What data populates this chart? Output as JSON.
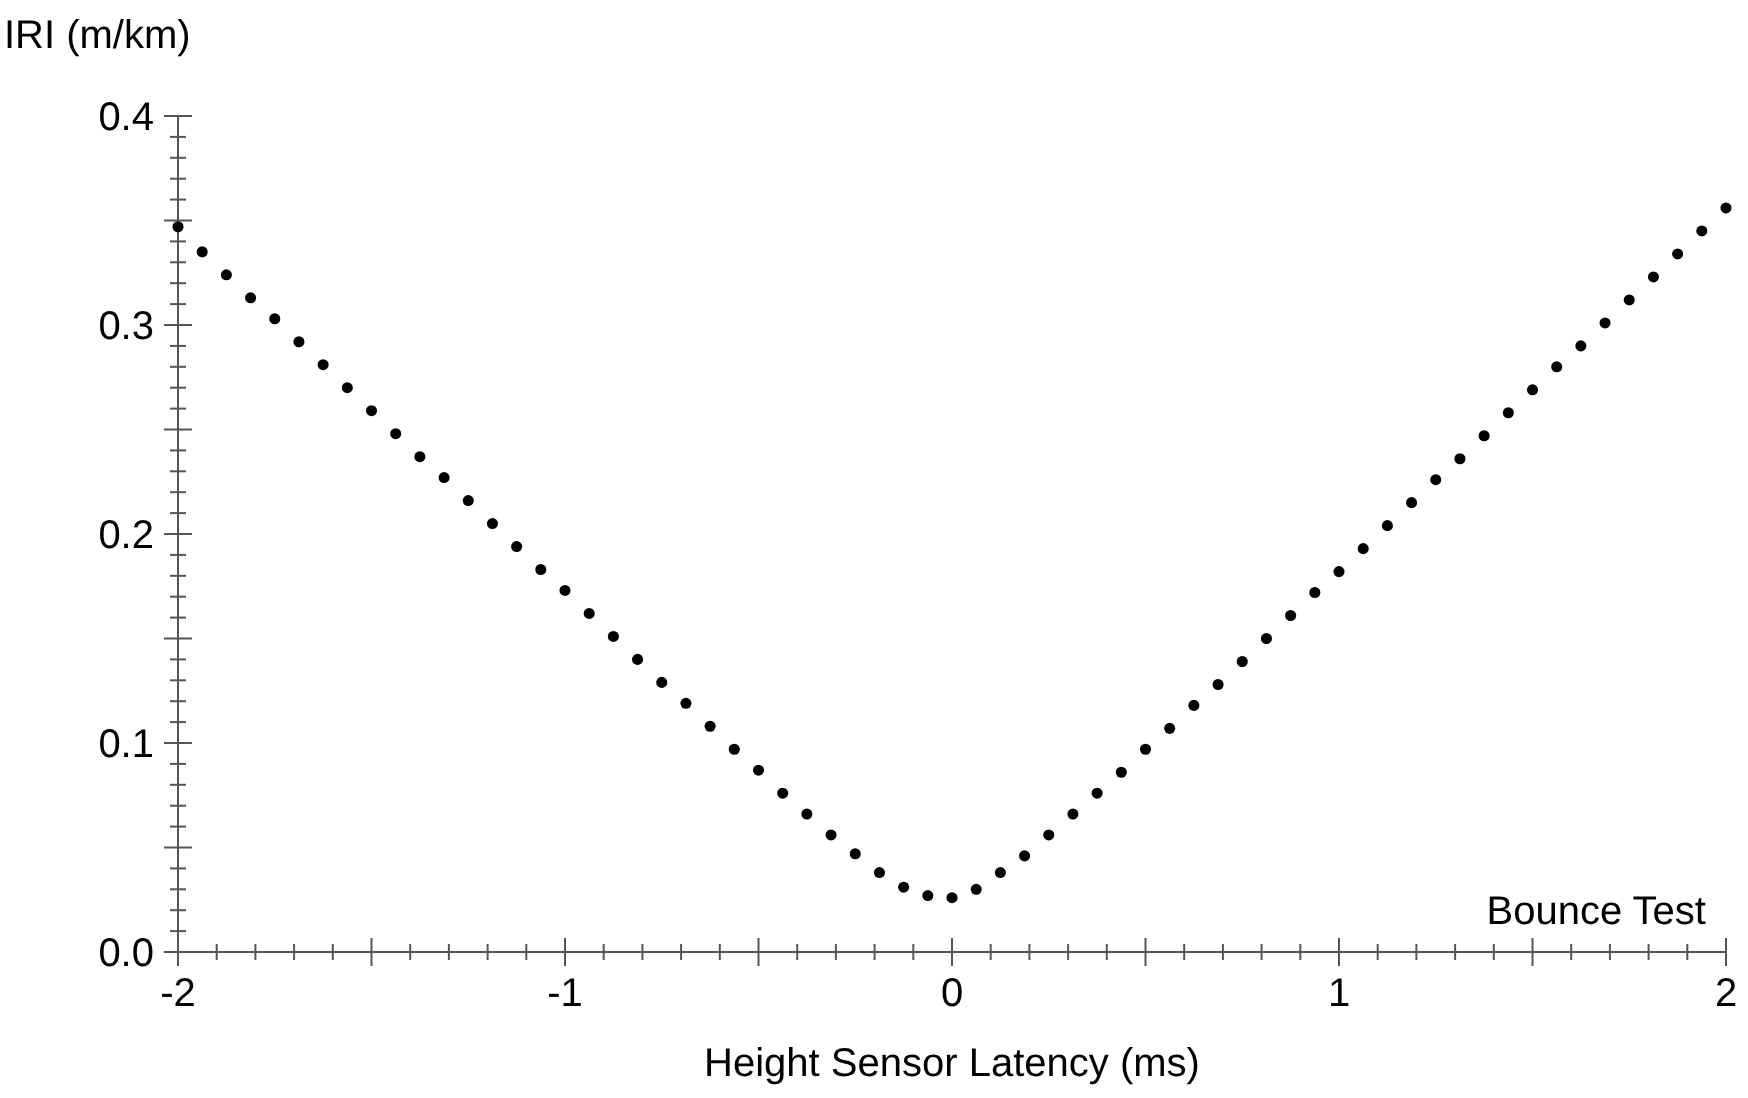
{
  "chart_data": {
    "type": "scatter",
    "xlabel": "Height Sensor Latency (ms)",
    "ylabel": "IRI (m/km)",
    "annotations": [
      "Bounce Test"
    ],
    "marker": "circle",
    "xlim": [
      -2,
      2
    ],
    "ylim": [
      0,
      0.4
    ],
    "xticks": [
      -2,
      {
        "value": -1.9,
        "label": null
      },
      {
        "value": -1.8,
        "label": null
      },
      {
        "value": -1.7,
        "label": null
      },
      {
        "value": -1.6,
        "label": null
      },
      {
        "value": -1.5,
        "label": null
      },
      {
        "value": -1.4,
        "label": null
      },
      {
        "value": -1.3,
        "label": null
      },
      {
        "value": -1.2,
        "label": null
      },
      {
        "value": -1.1,
        "label": null
      },
      -1,
      {
        "value": -0.9,
        "label": null
      },
      {
        "value": -0.8,
        "label": null
      },
      {
        "value": -0.7,
        "label": null
      },
      {
        "value": -0.6,
        "label": null
      },
      {
        "value": -0.5,
        "label": null
      },
      {
        "value": -0.4,
        "label": null
      },
      {
        "value": -0.3,
        "label": null
      },
      {
        "value": -0.2,
        "label": null
      },
      {
        "value": -0.1,
        "label": null
      },
      0,
      {
        "value": 0.1,
        "label": null
      },
      {
        "value": 0.2,
        "label": null
      },
      {
        "value": 0.3,
        "label": null
      },
      {
        "value": 0.4,
        "label": null
      },
      {
        "value": 0.5,
        "label": null
      },
      {
        "value": 0.6,
        "label": null
      },
      {
        "value": 0.7,
        "label": null
      },
      {
        "value": 0.8,
        "label": null
      },
      {
        "value": 0.9,
        "label": null
      },
      1,
      {
        "value": 1.1,
        "label": null
      },
      {
        "value": 1.2,
        "label": null
      },
      {
        "value": 1.3,
        "label": null
      },
      {
        "value": 1.4,
        "label": null
      },
      {
        "value": 1.5,
        "label": null
      },
      {
        "value": 1.6,
        "label": null
      },
      {
        "value": 1.7,
        "label": null
      },
      {
        "value": 1.8,
        "label": null
      },
      {
        "value": 1.9,
        "label": null
      },
      2
    ],
    "yticks": [
      {
        "value": 0,
        "label": "0.0"
      },
      {
        "value": 0.01,
        "label": null
      },
      {
        "value": 0.02,
        "label": null
      },
      {
        "value": 0.03,
        "label": null
      },
      {
        "value": 0.04,
        "label": null
      },
      {
        "value": 0.05,
        "label": null
      },
      {
        "value": 0.06,
        "label": null
      },
      {
        "value": 0.07,
        "label": null
      },
      {
        "value": 0.08,
        "label": null
      },
      {
        "value": 0.09,
        "label": null
      },
      0.1,
      {
        "value": 0.11,
        "label": null
      },
      {
        "value": 0.12,
        "label": null
      },
      {
        "value": 0.13,
        "label": null
      },
      {
        "value": 0.14,
        "label": null
      },
      {
        "value": 0.15,
        "label": null
      },
      {
        "value": 0.16,
        "label": null
      },
      {
        "value": 0.17,
        "label": null
      },
      {
        "value": 0.18,
        "label": null
      },
      {
        "value": 0.19,
        "label": null
      },
      0.2,
      {
        "value": 0.21,
        "label": null
      },
      {
        "value": 0.22,
        "label": null
      },
      {
        "value": 0.23,
        "label": null
      },
      {
        "value": 0.24,
        "label": null
      },
      {
        "value": 0.25,
        "label": null
      },
      {
        "value": 0.26,
        "label": null
      },
      {
        "value": 0.27,
        "label": null
      },
      {
        "value": 0.28,
        "label": null
      },
      {
        "value": 0.29,
        "label": null
      },
      0.3,
      {
        "value": 0.31,
        "label": null
      },
      {
        "value": 0.32,
        "label": null
      },
      {
        "value": 0.33,
        "label": null
      },
      {
        "value": 0.34,
        "label": null
      },
      {
        "value": 0.35,
        "label": null
      },
      {
        "value": 0.36,
        "label": null
      },
      {
        "value": 0.37,
        "label": null
      },
      {
        "value": 0.38,
        "label": null
      },
      {
        "value": 0.39,
        "label": null
      },
      0.4
    ],
    "series": [
      {
        "color": "#000000",
        "x": [
          -2,
          -1.9375,
          -1.875,
          -1.8125,
          -1.75,
          -1.6875,
          -1.625,
          -1.5625,
          -1.5,
          -1.4375,
          -1.375,
          -1.3125,
          -1.25,
          -1.1875,
          -1.125,
          -1.0625,
          -1,
          -0.9375,
          -0.875,
          -0.8125,
          -0.75,
          -0.6875,
          -0.625,
          -0.5625,
          -0.5,
          -0.4375,
          -0.375,
          -0.3125,
          -0.25,
          -0.1875,
          -0.125,
          -0.0625,
          0,
          0.0625,
          0.125,
          0.1875,
          0.25,
          0.3125,
          0.375,
          0.4375,
          0.5,
          0.5625,
          0.625,
          0.6875,
          0.75,
          0.8125,
          0.875,
          0.9375,
          1,
          1.0625,
          1.125,
          1.1875,
          1.25,
          1.3125,
          1.375,
          1.4375,
          1.5,
          1.5625,
          1.625,
          1.6875,
          1.75,
          1.8125,
          1.875,
          1.9375,
          2
        ],
        "values": [
          0.347,
          0.335,
          0.324,
          0.313,
          0.303,
          0.292,
          0.281,
          0.27,
          0.259,
          0.248,
          0.237,
          0.227,
          0.216,
          0.205,
          0.194,
          0.183,
          0.173,
          0.162,
          0.151,
          0.14,
          0.129,
          0.119,
          0.108,
          0.097,
          0.087,
          0.076,
          0.066,
          0.056,
          0.047,
          0.038,
          0.031,
          0.027,
          0.026,
          0.03,
          0.038,
          0.046,
          0.056,
          0.066,
          0.076,
          0.086,
          0.097,
          0.107,
          0.118,
          0.128,
          0.139,
          0.15,
          0.161,
          0.172,
          0.182,
          0.193,
          0.204,
          0.215,
          0.226,
          0.236,
          0.247,
          0.258,
          0.269,
          0.28,
          0.29,
          0.301,
          0.312,
          0.323,
          0.334,
          0.345,
          0.356
        ]
      }
    ]
  }
}
